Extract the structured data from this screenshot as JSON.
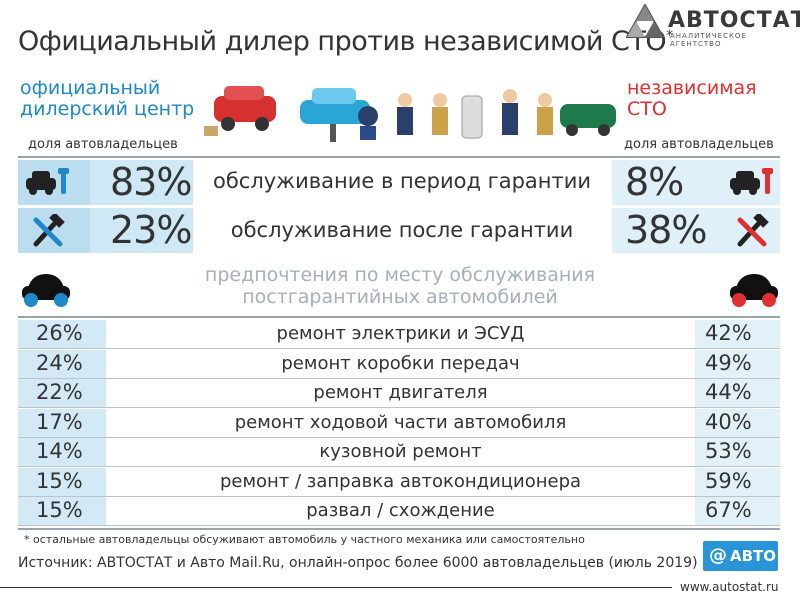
{
  "header": {
    "title": "Официальный дилер против независимой СТО",
    "title_mark": "*",
    "logo_name": "АВТОСТАТ",
    "logo_sub": "АНАЛИТИЧЕСКОЕ АГЕНТСТВО"
  },
  "left_heading": [
    "официальный",
    "дилерский центр"
  ],
  "right_heading": [
    "независимая",
    "СТО"
  ],
  "share_label_left": "доля автовладельцев",
  "share_label_right": "доля автовладельцев",
  "colors": {
    "dealer": "#1e88c8",
    "independent": "#e03030",
    "band_dealer": "#cfe8f5",
    "band_indep": "#dff0f8"
  },
  "icons": [
    "car-wrench-icon",
    "hammer-wrench-icon",
    "car-front-icon"
  ],
  "chart_data": [
    {
      "type": "table",
      "categories": [
        "обслуживание в период гарантии",
        "обслуживание после гарантии"
      ],
      "series": [
        {
          "name": "официальный дилерский центр",
          "values": [
            "83%",
            "23%"
          ]
        },
        {
          "name": "независимая СТО",
          "values": [
            "8%",
            "38%"
          ]
        }
      ]
    },
    {
      "type": "table",
      "title": "предпочтения по месту обслуживания постгарантийных автомобилей",
      "categories": [
        "ремонт электрики и ЭСУД",
        "ремонт коробки передач",
        "ремонт двигателя",
        "ремонт ходовой части автомобиля",
        "кузовной ремонт",
        "ремонт / заправка автокондиционера",
        "развал / схождение"
      ],
      "series": [
        {
          "name": "официальный дилерский центр",
          "values": [
            "26%",
            "24%",
            "22%",
            "17%",
            "14%",
            "15%",
            "15%"
          ]
        },
        {
          "name": "независимая СТО",
          "values": [
            "42%",
            "49%",
            "44%",
            "40%",
            "53%",
            "59%",
            "67%"
          ]
        }
      ]
    }
  ],
  "footnote": "* остальные автовладельцы обсуживают автомобиль у частного механика или самостоятельно",
  "source": "Источник: АВТОСТАТ и Авто Mail.Ru, онлайн-опрос более 6000 автовладельцев (июль 2019)",
  "avto_badge": {
    "symbol": "@",
    "text": "АВТО"
  },
  "url": "www.autostat.ru"
}
